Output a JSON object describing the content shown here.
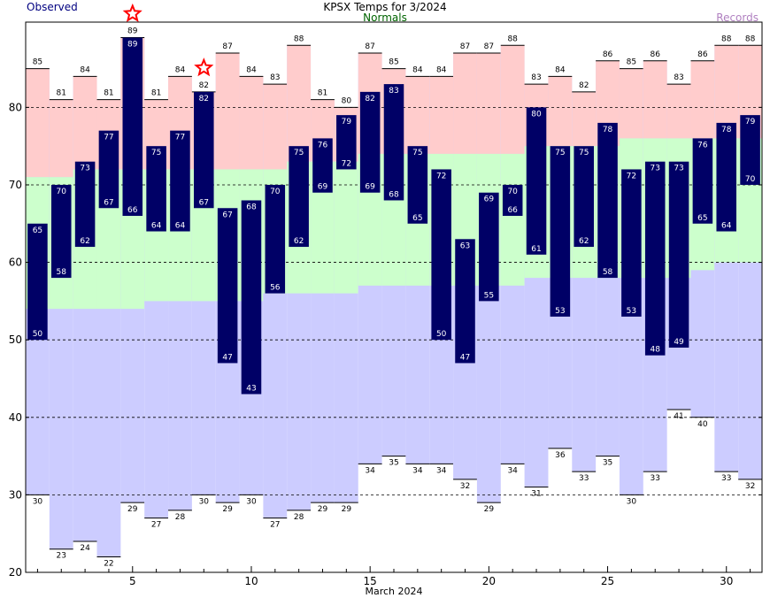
{
  "header": {
    "title": "KPSX Temps for 3/2024",
    "observed_label": "Observed",
    "normals_label": "Normals",
    "records_label": "Records",
    "x_axis_label": "March 2024"
  },
  "colors": {
    "observed": "#000066",
    "normal": "#ccffcc",
    "record_high": "#ffcccc",
    "record_low": "#ccccff",
    "star": "#ff0000"
  },
  "chart_data": {
    "type": "bar",
    "title": "KPSX Temps for 3/2024",
    "xlabel": "March 2024",
    "ylabel": "",
    "ylim": [
      20,
      91
    ],
    "xlim": [
      0.5,
      31.5
    ],
    "y_ticks": [
      20,
      30,
      40,
      50,
      60,
      70,
      80
    ],
    "x_ticks": [
      5,
      10,
      15,
      20,
      25,
      30
    ],
    "dashed_gridlines": [
      30,
      40,
      50,
      60,
      70,
      80
    ],
    "days": [
      1,
      2,
      3,
      4,
      5,
      6,
      7,
      8,
      9,
      10,
      11,
      12,
      13,
      14,
      15,
      16,
      17,
      18,
      19,
      20,
      21,
      22,
      23,
      24,
      25,
      26,
      27,
      28,
      29,
      30,
      31
    ],
    "observed_high": [
      65,
      70,
      73,
      77,
      89,
      75,
      77,
      82,
      67,
      68,
      70,
      75,
      76,
      79,
      82,
      83,
      75,
      72,
      63,
      69,
      70,
      80,
      75,
      75,
      78,
      72,
      73,
      73,
      76,
      78,
      79
    ],
    "observed_low": [
      50,
      58,
      62,
      67,
      66,
      64,
      64,
      67,
      47,
      43,
      56,
      62,
      69,
      72,
      69,
      68,
      65,
      50,
      47,
      55,
      66,
      61,
      53,
      62,
      58,
      53,
      48,
      49,
      65,
      64,
      70
    ],
    "record_high": [
      85,
      81,
      84,
      81,
      89,
      81,
      84,
      82,
      87,
      84,
      83,
      88,
      81,
      80,
      87,
      85,
      84,
      84,
      87,
      87,
      88,
      83,
      84,
      82,
      86,
      85,
      86,
      83,
      86,
      88,
      88
    ],
    "record_low": [
      30,
      23,
      24,
      22,
      29,
      27,
      28,
      30,
      29,
      30,
      27,
      28,
      29,
      29,
      34,
      35,
      34,
      34,
      32,
      29,
      34,
      31,
      36,
      33,
      35,
      30,
      33,
      41,
      40,
      33,
      32
    ],
    "normal_high": [
      71,
      71,
      72,
      72,
      72,
      72,
      72,
      72,
      72,
      72,
      72,
      73,
      73,
      73,
      74,
      74,
      74,
      74,
      74,
      74,
      74,
      75,
      75,
      75,
      75,
      76,
      76,
      76,
      76,
      76,
      76
    ],
    "normal_low": [
      54,
      54,
      54,
      54,
      54,
      55,
      55,
      55,
      55,
      55,
      56,
      56,
      56,
      56,
      57,
      57,
      57,
      57,
      57,
      57,
      57,
      58,
      58,
      58,
      58,
      58,
      58,
      58,
      59,
      60,
      60
    ],
    "record_high_set_days": [
      5,
      8
    ]
  }
}
